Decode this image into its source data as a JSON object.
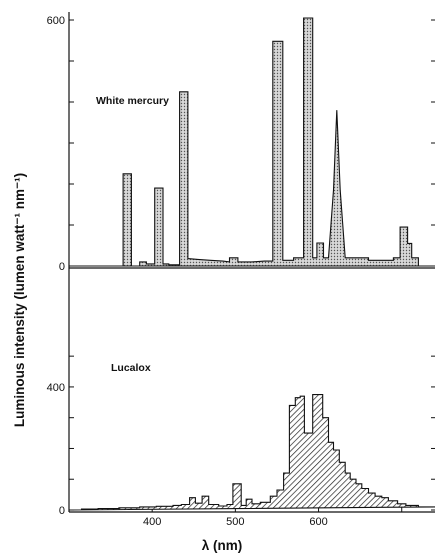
{
  "chart_data": {
    "type": "area",
    "ylabel": "Luminous intensity (lumen watt⁻¹ nm⁻¹)",
    "xlabel": "λ (nm)",
    "xlim": [
      300,
      740
    ],
    "x_ticks": [
      400,
      500,
      600,
      700
    ],
    "x_tick_labels": [
      "400",
      "500",
      "600"
    ],
    "panels": [
      {
        "name": "White mercury",
        "ylim": [
          0,
          600
        ],
        "y_ticks": [
          0,
          100,
          200,
          300,
          400,
          500,
          600
        ],
        "y_tick_labels": [
          "0",
          "600"
        ],
        "fill": "dotted",
        "outline": [
          [
            300,
            0
          ],
          [
            365,
            0
          ],
          [
            365,
            225
          ],
          [
            375,
            225
          ],
          [
            375,
            0
          ],
          [
            385,
            0
          ],
          [
            385,
            10
          ],
          [
            393,
            10
          ],
          [
            393,
            5
          ],
          [
            403,
            5
          ],
          [
            403,
            190
          ],
          [
            413,
            190
          ],
          [
            413,
            5
          ],
          [
            420,
            5
          ],
          [
            420,
            3
          ],
          [
            433,
            3
          ],
          [
            433,
            425
          ],
          [
            443,
            425
          ],
          [
            443,
            18
          ],
          [
            455,
            16
          ],
          [
            470,
            14
          ],
          [
            485,
            12
          ],
          [
            493,
            10
          ],
          [
            493,
            20
          ],
          [
            503,
            20
          ],
          [
            503,
            10
          ],
          [
            520,
            10
          ],
          [
            535,
            12
          ],
          [
            545,
            12
          ],
          [
            545,
            548
          ],
          [
            557,
            548
          ],
          [
            557,
            14
          ],
          [
            570,
            14
          ],
          [
            570,
            20
          ],
          [
            582,
            20
          ],
          [
            582,
            605
          ],
          [
            593,
            605
          ],
          [
            593,
            20
          ],
          [
            598,
            20
          ],
          [
            598,
            56
          ],
          [
            606,
            56
          ],
          [
            606,
            20
          ],
          [
            612,
            20
          ],
          [
            618,
            185
          ],
          [
            622,
            380
          ],
          [
            626,
            185
          ],
          [
            632,
            20
          ],
          [
            650,
            20
          ],
          [
            650,
            20
          ],
          [
            660,
            20
          ],
          [
            660,
            14
          ],
          [
            690,
            14
          ],
          [
            690,
            20
          ],
          [
            698,
            20
          ],
          [
            698,
            95
          ],
          [
            707,
            95
          ],
          [
            707,
            55
          ],
          [
            712,
            55
          ],
          [
            712,
            20
          ],
          [
            720,
            20
          ],
          [
            720,
            0
          ],
          [
            740,
            0
          ]
        ]
      },
      {
        "name": "Lucalox",
        "ylim": [
          0,
          520
        ],
        "y_ticks": [
          0,
          100,
          200,
          300,
          400,
          500
        ],
        "y_tick_labels": [
          "0",
          "400"
        ],
        "fill": "hatched",
        "outline": [
          [
            300,
            0
          ],
          [
            315,
            0
          ],
          [
            315,
            3
          ],
          [
            335,
            3
          ],
          [
            335,
            5
          ],
          [
            360,
            5
          ],
          [
            360,
            7
          ],
          [
            385,
            7
          ],
          [
            385,
            10
          ],
          [
            405,
            10
          ],
          [
            405,
            12
          ],
          [
            425,
            12
          ],
          [
            425,
            15
          ],
          [
            435,
            15
          ],
          [
            435,
            18
          ],
          [
            445,
            18
          ],
          [
            445,
            40
          ],
          [
            452,
            40
          ],
          [
            452,
            22
          ],
          [
            460,
            22
          ],
          [
            460,
            45
          ],
          [
            468,
            45
          ],
          [
            468,
            18
          ],
          [
            480,
            18
          ],
          [
            480,
            13
          ],
          [
            490,
            13
          ],
          [
            490,
            18
          ],
          [
            497,
            18
          ],
          [
            497,
            85
          ],
          [
            507,
            85
          ],
          [
            507,
            15
          ],
          [
            513,
            15
          ],
          [
            513,
            35
          ],
          [
            520,
            35
          ],
          [
            520,
            20
          ],
          [
            530,
            20
          ],
          [
            530,
            25
          ],
          [
            542,
            25
          ],
          [
            542,
            45
          ],
          [
            550,
            45
          ],
          [
            550,
            65
          ],
          [
            558,
            65
          ],
          [
            558,
            120
          ],
          [
            565,
            120
          ],
          [
            565,
            340
          ],
          [
            572,
            340
          ],
          [
            572,
            365
          ],
          [
            578,
            365
          ],
          [
            578,
            370
          ],
          [
            583,
            370
          ],
          [
            583,
            250
          ],
          [
            593,
            250
          ],
          [
            593,
            375
          ],
          [
            605,
            375
          ],
          [
            605,
            300
          ],
          [
            612,
            300
          ],
          [
            612,
            220
          ],
          [
            618,
            220
          ],
          [
            618,
            195
          ],
          [
            625,
            195
          ],
          [
            625,
            155
          ],
          [
            632,
            155
          ],
          [
            632,
            120
          ],
          [
            638,
            120
          ],
          [
            638,
            100
          ],
          [
            645,
            100
          ],
          [
            645,
            85
          ],
          [
            652,
            85
          ],
          [
            652,
            70
          ],
          [
            660,
            70
          ],
          [
            660,
            55
          ],
          [
            668,
            55
          ],
          [
            668,
            45
          ],
          [
            676,
            45
          ],
          [
            676,
            40
          ],
          [
            684,
            40
          ],
          [
            684,
            30
          ],
          [
            695,
            30
          ],
          [
            695,
            20
          ],
          [
            705,
            20
          ],
          [
            705,
            15
          ],
          [
            720,
            15
          ],
          [
            720,
            10
          ],
          [
            740,
            10
          ]
        ]
      }
    ]
  },
  "colors": {
    "ink": "#111111",
    "background": "#ffffff"
  }
}
